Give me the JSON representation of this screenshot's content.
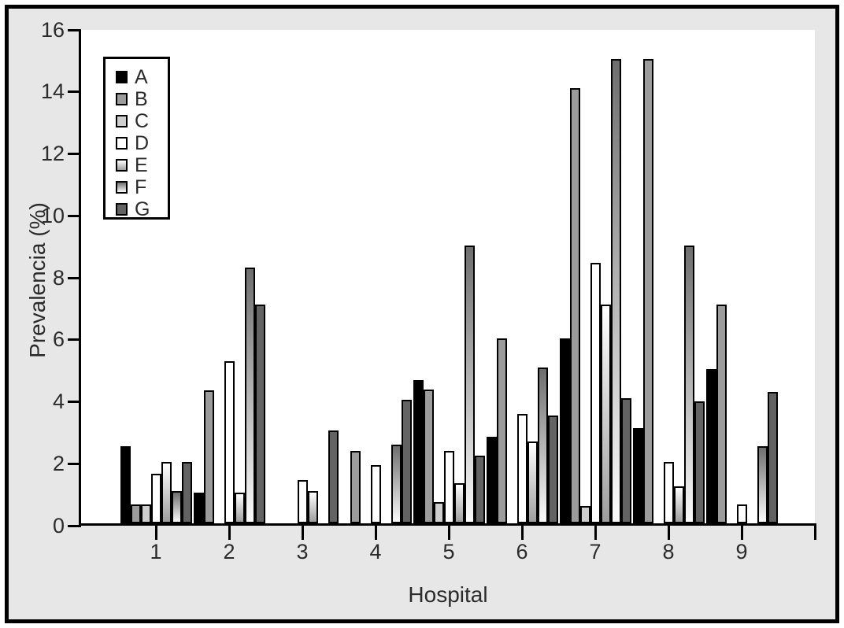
{
  "colors": {
    "figure_bg": "#e7e7e7",
    "plot_bg": "#ffffff",
    "axis": "#000000",
    "text": "#2b2b2b",
    "bar_outline": "#000000"
  },
  "chart_data": {
    "type": "bar",
    "title": "",
    "xlabel": "Hospital",
    "ylabel": "Prevalencia (%)",
    "categories": [
      "1",
      "2",
      "3",
      "4",
      "5",
      "6",
      "7",
      "8",
      "9"
    ],
    "ylim": [
      0,
      16
    ],
    "yticks": [
      0,
      2,
      4,
      6,
      8,
      10,
      12,
      14,
      16
    ],
    "grid": false,
    "legend_position": "top-left-inside",
    "legend_entries": [
      "A",
      "B",
      "C",
      "D",
      "E",
      "F",
      "G"
    ],
    "series": [
      {
        "name": "A",
        "fill": {
          "type": "solid",
          "color": "#000000"
        },
        "values": [
          2.5,
          1.0,
          0,
          0,
          4.65,
          2.8,
          6.0,
          3.1,
          5.0
        ]
      },
      {
        "name": "B",
        "fill": {
          "type": "solid",
          "color": "#9c9c9c"
        },
        "values": [
          0.6,
          4.3,
          0,
          2.35,
          4.35,
          6.0,
          14.1,
          15.05,
          7.1
        ]
      },
      {
        "name": "C",
        "fill": {
          "type": "solid",
          "color": "#cecece"
        },
        "values": [
          0.6,
          0,
          0,
          0,
          0.7,
          0,
          0.55,
          0,
          0
        ]
      },
      {
        "name": "D",
        "fill": {
          "type": "solid",
          "color": "#ffffff"
        },
        "values": [
          1.6,
          5.25,
          1.4,
          1.9,
          2.35,
          3.55,
          8.45,
          2.0,
          0.6
        ]
      },
      {
        "name": "E",
        "fill": {
          "type": "gradient",
          "from": "#ffffff",
          "to": "#9e9e9e"
        },
        "values": [
          2.0,
          1.0,
          1.05,
          0,
          1.3,
          2.65,
          7.1,
          1.2,
          0
        ]
      },
      {
        "name": "F",
        "fill": {
          "type": "gradient",
          "from": "#6e6e6e",
          "to": "#fbfbfb"
        },
        "values": [
          1.05,
          8.3,
          0,
          2.55,
          9.0,
          5.05,
          15.05,
          9.0,
          2.5
        ]
      },
      {
        "name": "G",
        "fill": {
          "type": "solid",
          "color": "#636363"
        },
        "values": [
          2.0,
          7.1,
          3.0,
          4.0,
          2.2,
          3.5,
          4.05,
          3.95,
          4.25
        ]
      }
    ]
  }
}
